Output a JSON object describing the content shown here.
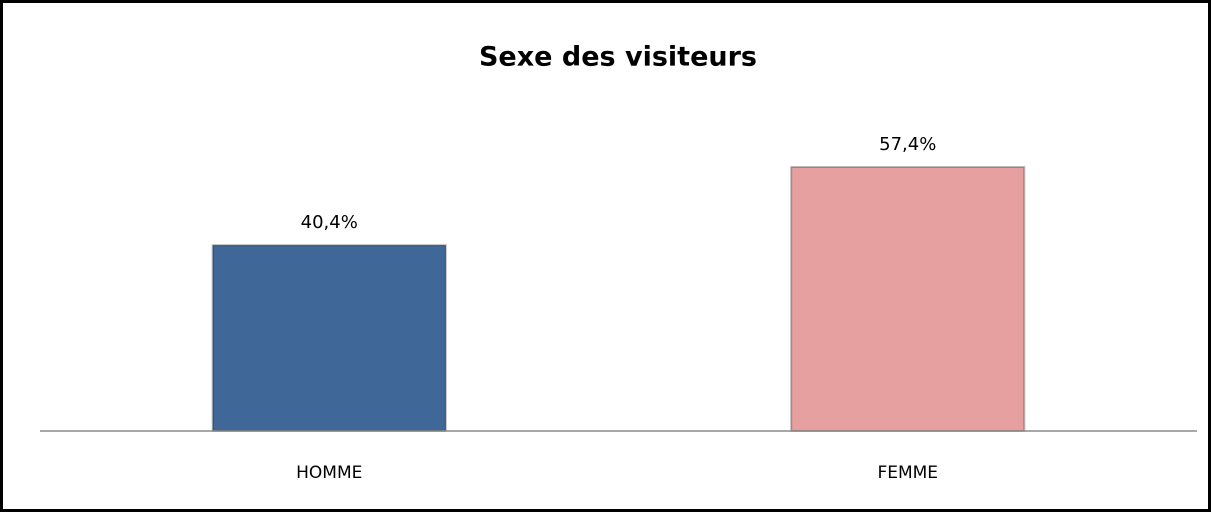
{
  "chart_data": {
    "type": "bar",
    "title": "Sexe des visiteurs",
    "categories": [
      "HOMME",
      "FEMME"
    ],
    "values": [
      40.4,
      57.4
    ],
    "value_labels": [
      "40,4%",
      "57,4%"
    ],
    "colors": [
      "#3f6899",
      "#e6a09f"
    ]
  }
}
